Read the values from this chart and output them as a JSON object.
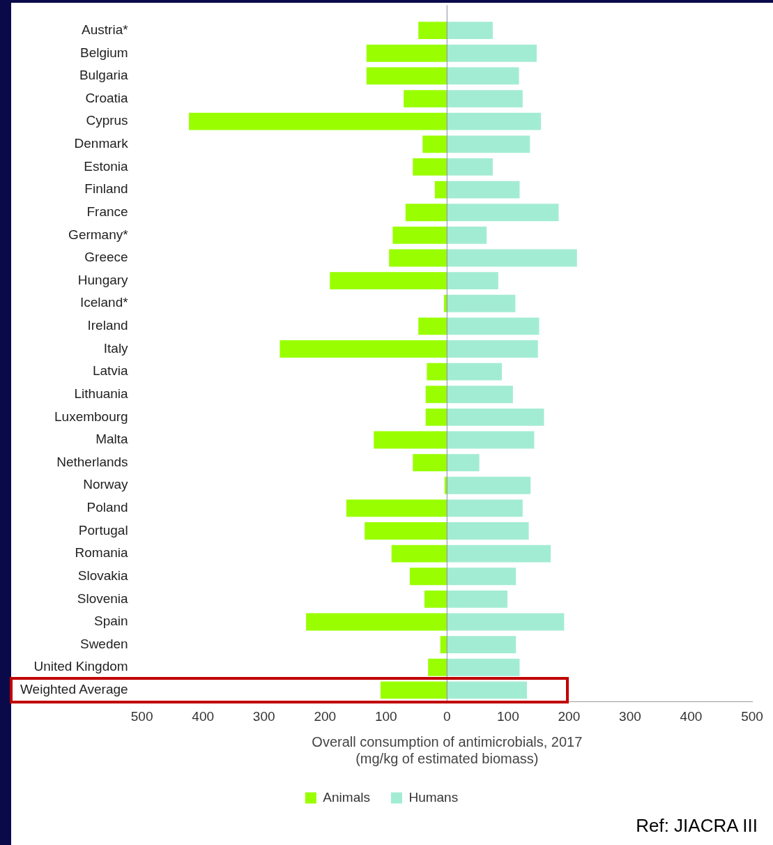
{
  "chart_data": {
    "type": "bar",
    "orientation": "horizontal",
    "stacked": true,
    "categories": [
      "Austria*",
      "Belgium",
      "Bulgaria",
      "Croatia",
      "Cyprus",
      "Denmark",
      "Estonia",
      "Finland",
      "France",
      "Germany*",
      "Greece",
      "Hungary",
      "Iceland*",
      "Ireland",
      "Italy",
      "Latvia",
      "Lithuania",
      "Luxembourg",
      "Malta",
      "Netherlands",
      "Norway",
      "Poland",
      "Portugal",
      "Romania",
      "Slovakia",
      "Slovenia",
      "Spain",
      "Sweden",
      "United Kingdom",
      "Weighted Average"
    ],
    "series": [
      {
        "name": "Animals",
        "color": "#99ff00",
        "values": [
          -47,
          -132,
          -132,
          -71,
          -423,
          -40,
          -56,
          -20,
          -68,
          -89,
          -95,
          -192,
          -5,
          -47,
          -274,
          -33,
          -35,
          -35,
          -120,
          -56,
          -4,
          -165,
          -135,
          -91,
          -61,
          -37,
          -231,
          -11,
          -31,
          -109
        ]
      },
      {
        "name": "Humans",
        "color": "#a3ecd4",
        "values": [
          75,
          147,
          118,
          124,
          154,
          136,
          75,
          119,
          183,
          65,
          213,
          84,
          112,
          151,
          149,
          90,
          108,
          159,
          143,
          53,
          137,
          124,
          134,
          170,
          113,
          99,
          192,
          113,
          119,
          131
        ]
      }
    ],
    "xlabel": "Overall consumption of antimicrobials, 2017\n(mg/kg of estimated biomass)",
    "xlim": [
      -500,
      500
    ],
    "xticks": [
      {
        "value": -500,
        "label": "500"
      },
      {
        "value": -400,
        "label": "400"
      },
      {
        "value": -300,
        "label": "300"
      },
      {
        "value": -200,
        "label": "200"
      },
      {
        "value": -100,
        "label": "100"
      },
      0,
      100,
      200,
      300,
      400,
      500
    ],
    "grid": false,
    "ref_lines": [
      {
        "axis": "x",
        "value": 0,
        "color": "#8a8aa8"
      }
    ],
    "legend": "bottom",
    "annotations": [
      "Ref: JIACRA III"
    ]
  }
}
